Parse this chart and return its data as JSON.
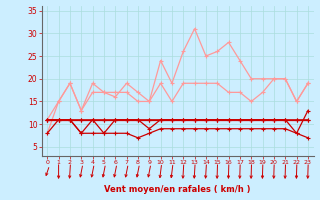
{
  "x": [
    0,
    1,
    2,
    3,
    4,
    5,
    6,
    7,
    8,
    9,
    10,
    11,
    12,
    13,
    14,
    15,
    16,
    17,
    18,
    19,
    20,
    21,
    22,
    23
  ],
  "line_dark1": [
    11,
    11,
    11,
    11,
    11,
    11,
    11,
    11,
    11,
    11,
    11,
    11,
    11,
    11,
    11,
    11,
    11,
    11,
    11,
    11,
    11,
    11,
    11,
    11
  ],
  "line_dark2": [
    11,
    11,
    11,
    11,
    11,
    11,
    11,
    11,
    11,
    11,
    11,
    11,
    11,
    11,
    11,
    11,
    11,
    11,
    11,
    11,
    11,
    11,
    11,
    11
  ],
  "line_dark3": [
    11,
    11,
    11,
    8,
    11,
    8,
    11,
    11,
    11,
    9,
    11,
    11,
    11,
    11,
    11,
    11,
    11,
    11,
    11,
    11,
    11,
    11,
    8,
    13
  ],
  "line_dark4": [
    8,
    11,
    11,
    8,
    8,
    8,
    8,
    8,
    7,
    8,
    9,
    9,
    9,
    9,
    9,
    9,
    9,
    9,
    9,
    9,
    9,
    9,
    8,
    7
  ],
  "line_light1": [
    11,
    15,
    19,
    13,
    19,
    17,
    17,
    17,
    15,
    15,
    19,
    15,
    19,
    19,
    19,
    19,
    17,
    17,
    15,
    17,
    20,
    20,
    15,
    19
  ],
  "line_light2": [
    8,
    15,
    19,
    13,
    17,
    17,
    16,
    19,
    17,
    15,
    24,
    19,
    26,
    31,
    25,
    26,
    28,
    24,
    20,
    20,
    20,
    20,
    15,
    19
  ],
  "background_color": "#cceeff",
  "grid_color": "#aadddd",
  "dark_red": "#cc0000",
  "light_red": "#ff9999",
  "text_color": "#cc0000",
  "xlabel": "Vent moyen/en rafales ( km/h )",
  "ylim": [
    3,
    36
  ],
  "yticks": [
    5,
    10,
    15,
    20,
    25,
    30,
    35
  ],
  "xticks": [
    0,
    1,
    2,
    3,
    4,
    5,
    6,
    7,
    8,
    9,
    10,
    11,
    12,
    13,
    14,
    15,
    16,
    17,
    18,
    19,
    20,
    21,
    22,
    23
  ],
  "arrow_angles": [
    225,
    270,
    260,
    240,
    240,
    240,
    240,
    240,
    240,
    240,
    250,
    250,
    260,
    260,
    260,
    265,
    265,
    265,
    265,
    265,
    265,
    265,
    265,
    265
  ]
}
